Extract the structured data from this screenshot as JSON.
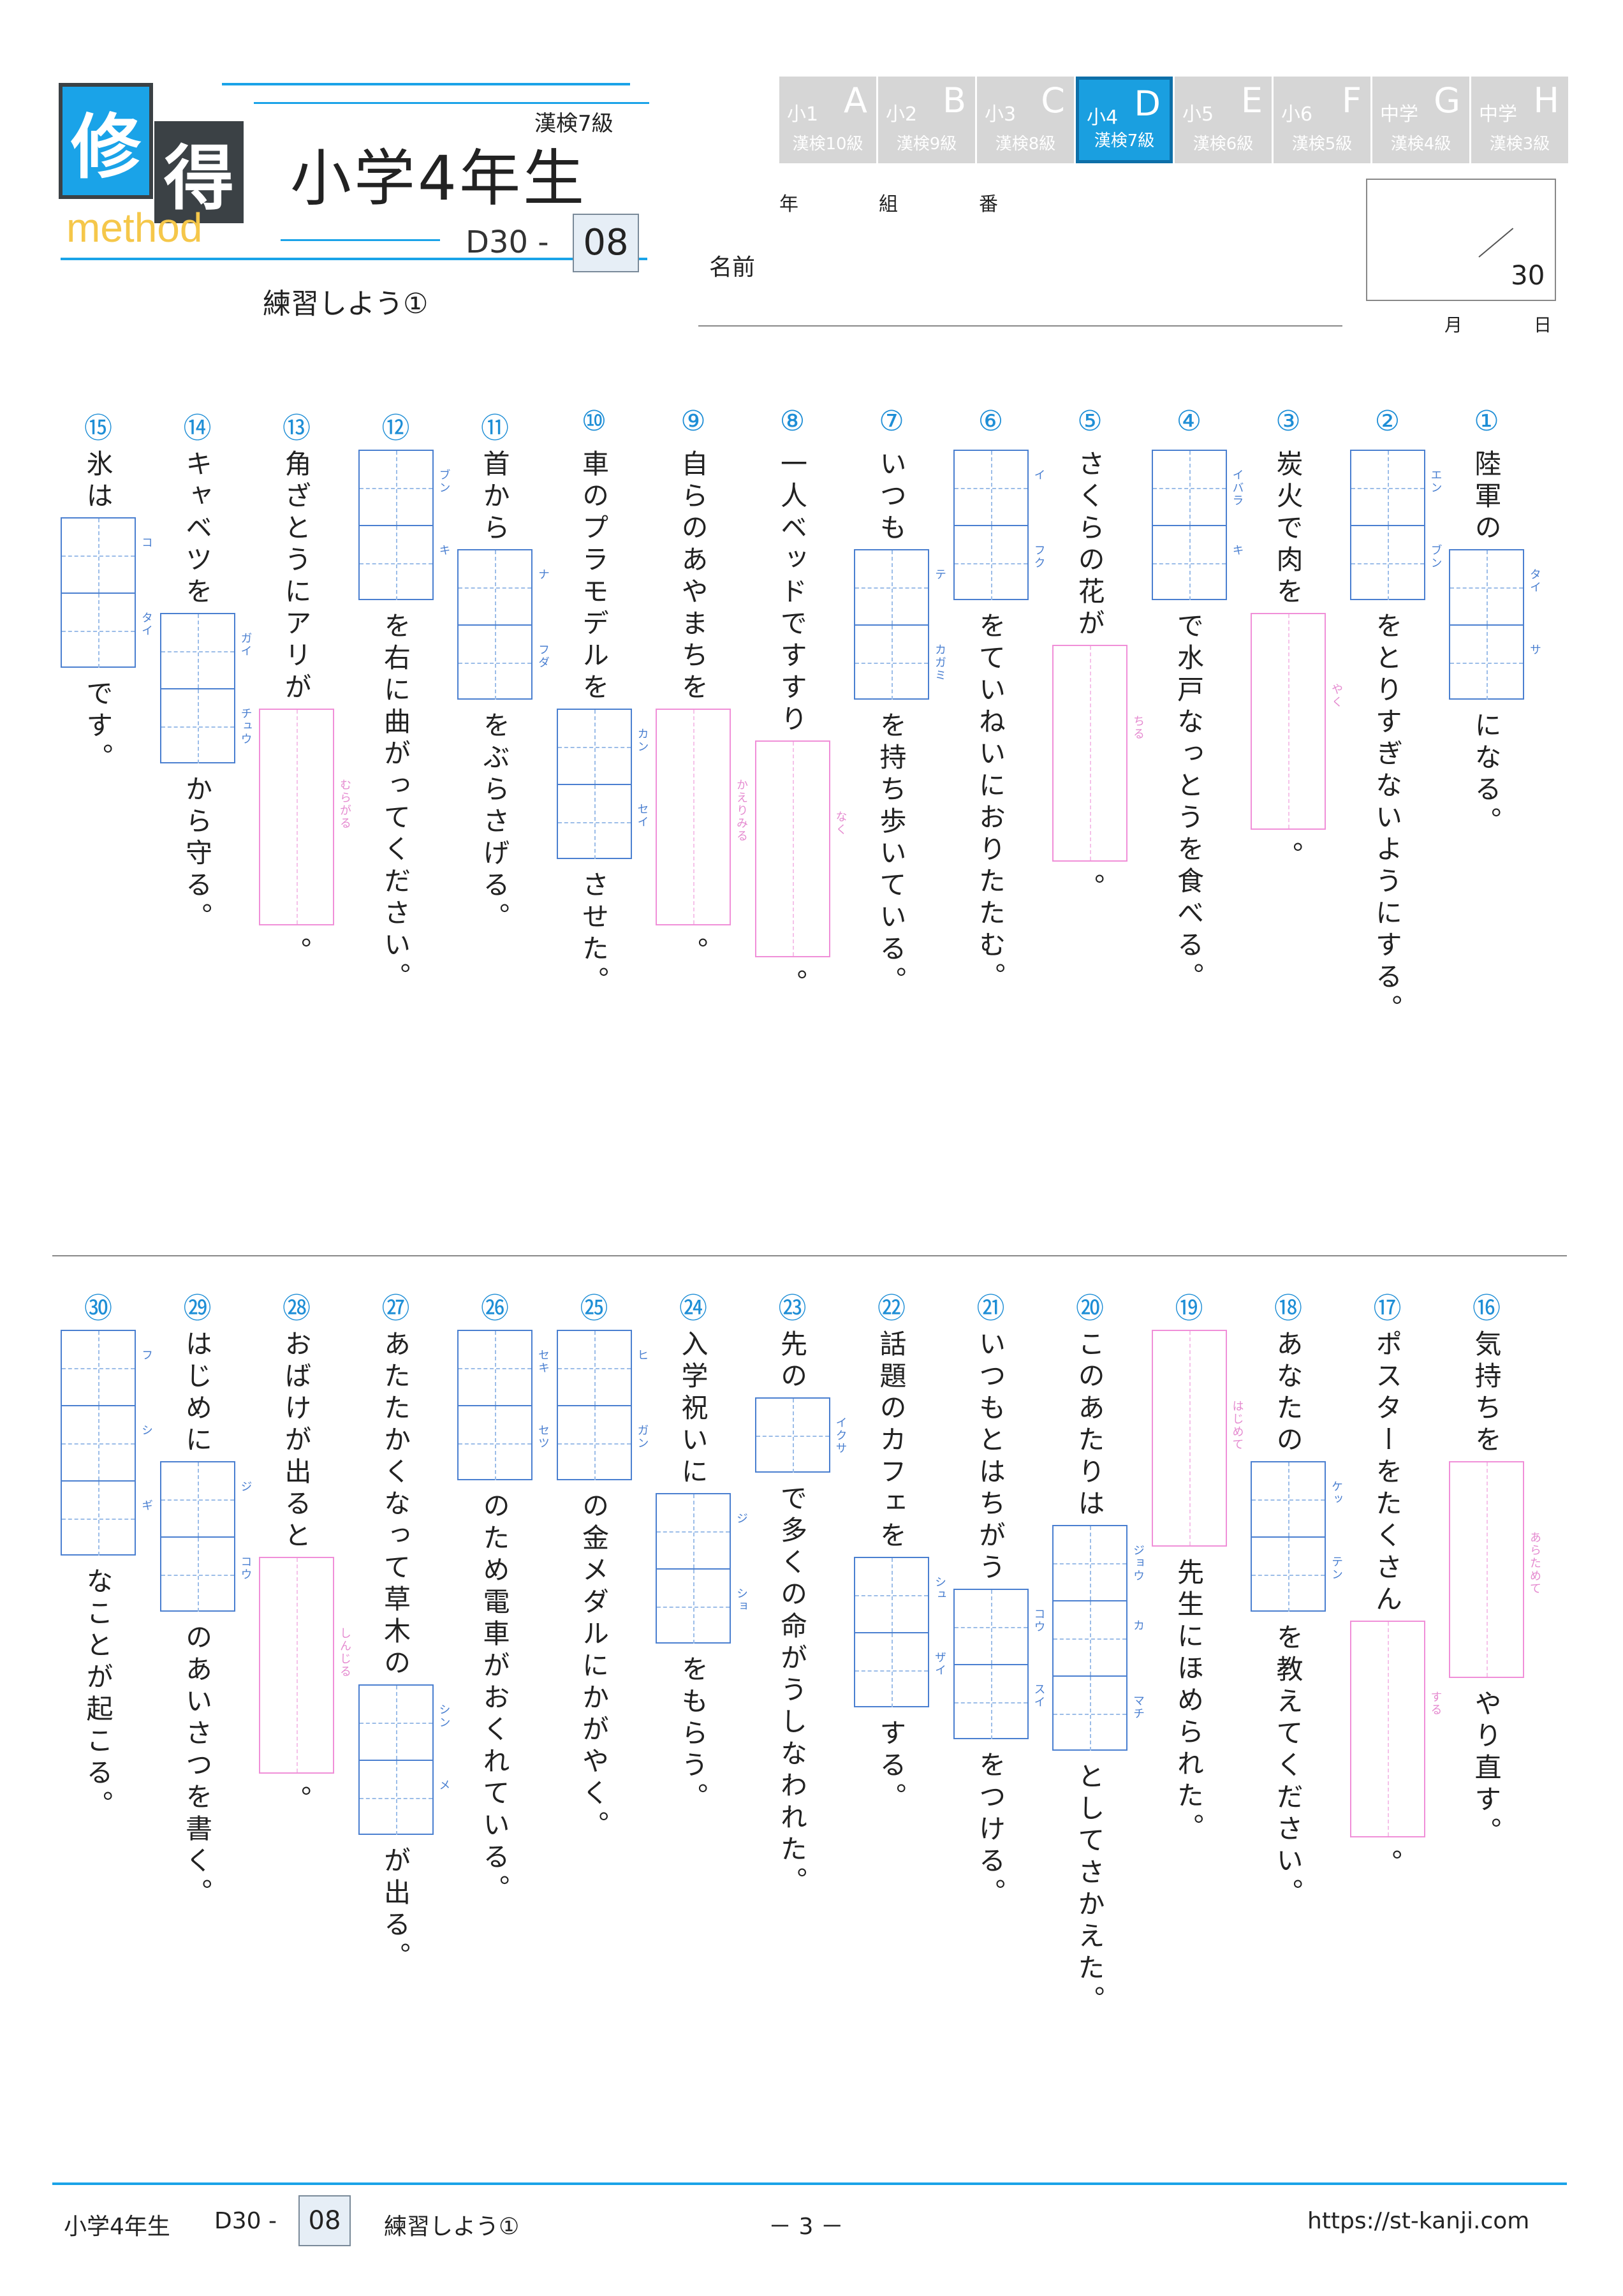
{
  "header": {
    "logo_char1": "修",
    "logo_char2": "得",
    "logo_method": "method",
    "kanken": "漢検7級",
    "title": "小学4年生",
    "code_prefix": "D30 -",
    "code_num": "08",
    "subtitle": "練習しよう①",
    "nen": "年",
    "kumi": "組",
    "ban": "番",
    "name_label": "名前",
    "score": "30",
    "month": "月",
    "day": "日"
  },
  "grades": [
    {
      "grade": "小1",
      "letter": "A",
      "kanken": "漢検10級",
      "active": false
    },
    {
      "grade": "小2",
      "letter": "B",
      "kanken": "漢検9級",
      "active": false
    },
    {
      "grade": "小3",
      "letter": "C",
      "kanken": "漢検8級",
      "active": false
    },
    {
      "grade": "小4",
      "letter": "D",
      "kanken": "漢検7級",
      "active": true
    },
    {
      "grade": "小5",
      "letter": "E",
      "kanken": "漢検6級",
      "active": false
    },
    {
      "grade": "小6",
      "letter": "F",
      "kanken": "漢検5級",
      "active": false
    },
    {
      "grade": "中学",
      "letter": "G",
      "kanken": "漢検4級",
      "active": false
    },
    {
      "grade": "中学",
      "letter": "H",
      "kanken": "漢検3級",
      "active": false
    }
  ],
  "questions": [
    {
      "num": "①",
      "parts": [
        {
          "t": "text",
          "v": "陸軍の"
        },
        {
          "t": "box",
          "r": [
            "タイ",
            "サ"
          ],
          "c": "blue"
        },
        {
          "t": "text",
          "v": "になる。"
        }
      ]
    },
    {
      "num": "②",
      "parts": [
        {
          "t": "box",
          "r": [
            "エン",
            "ブン"
          ],
          "c": "blue"
        },
        {
          "t": "text",
          "v": "をとりすぎないようにする。"
        }
      ]
    },
    {
      "num": "③",
      "parts": [
        {
          "t": "text",
          "v": "炭火で肉を"
        },
        {
          "t": "box",
          "r": [
            "やく"
          ],
          "c": "pink"
        },
        {
          "t": "text",
          "v": "。"
        }
      ]
    },
    {
      "num": "④",
      "parts": [
        {
          "t": "box",
          "r": [
            "イバラ",
            "キ"
          ],
          "c": "blue"
        },
        {
          "t": "text",
          "v": "で水戸なっとうを食べる。"
        }
      ]
    },
    {
      "num": "⑤",
      "parts": [
        {
          "t": "text",
          "v": "さくらの花が"
        },
        {
          "t": "box",
          "r": [
            "ちる"
          ],
          "c": "pink"
        },
        {
          "t": "text",
          "v": "。"
        }
      ]
    },
    {
      "num": "⑥",
      "parts": [
        {
          "t": "box",
          "r": [
            "イ",
            "フク"
          ],
          "c": "blue"
        },
        {
          "t": "text",
          "v": "をていねいにおりたたむ。"
        }
      ]
    },
    {
      "num": "⑦",
      "parts": [
        {
          "t": "text",
          "v": "いつも"
        },
        {
          "t": "box",
          "r": [
            "テ",
            "カガミ"
          ],
          "c": "blue"
        },
        {
          "t": "text",
          "v": "を持ち歩いている。"
        }
      ]
    },
    {
      "num": "⑧",
      "parts": [
        {
          "t": "text",
          "v": "一人ベッドですすり"
        },
        {
          "t": "box",
          "r": [
            "なく"
          ],
          "c": "pink"
        },
        {
          "t": "text",
          "v": "。"
        }
      ]
    },
    {
      "num": "⑨",
      "parts": [
        {
          "t": "text",
          "v": "自らのあやまちを"
        },
        {
          "t": "box",
          "r": [
            "かえりみる"
          ],
          "c": "pink"
        },
        {
          "t": "text",
          "v": "。"
        }
      ]
    },
    {
      "num": "⑩",
      "parts": [
        {
          "t": "text",
          "v": "車のプラモデルを"
        },
        {
          "t": "box",
          "r": [
            "カン",
            "セイ"
          ],
          "c": "blue"
        },
        {
          "t": "text",
          "v": "させた。"
        }
      ]
    },
    {
      "num": "⑪",
      "parts": [
        {
          "t": "text",
          "v": "首から"
        },
        {
          "t": "box",
          "r": [
            "ナ",
            "フダ"
          ],
          "c": "blue"
        },
        {
          "t": "text",
          "v": "をぶらさげる。"
        }
      ]
    },
    {
      "num": "⑫",
      "parts": [
        {
          "t": "box",
          "r": [
            "ブン",
            "キ"
          ],
          "c": "blue"
        },
        {
          "t": "text",
          "v": "を右に曲がってください。"
        }
      ]
    },
    {
      "num": "⑬",
      "parts": [
        {
          "t": "text",
          "v": "角ざとうにアリが"
        },
        {
          "t": "box",
          "r": [
            "むらがる"
          ],
          "c": "pink"
        },
        {
          "t": "text",
          "v": "。"
        }
      ]
    },
    {
      "num": "⑭",
      "parts": [
        {
          "t": "text",
          "v": "キャベツを"
        },
        {
          "t": "box",
          "r": [
            "ガイ",
            "チュウ"
          ],
          "c": "blue"
        },
        {
          "t": "text",
          "v": "から守る。"
        }
      ]
    },
    {
      "num": "⑮",
      "parts": [
        {
          "t": "text",
          "v": "氷は"
        },
        {
          "t": "box",
          "r": [
            "コ",
            "タイ"
          ],
          "c": "blue"
        },
        {
          "t": "text",
          "v": "です。"
        }
      ]
    },
    {
      "num": "⑯",
      "parts": [
        {
          "t": "text",
          "v": "気持ちを"
        },
        {
          "t": "box",
          "r": [
            "あらためて"
          ],
          "c": "pink"
        },
        {
          "t": "text",
          "v": "やり直す。"
        }
      ]
    },
    {
      "num": "⑰",
      "parts": [
        {
          "t": "text",
          "v": "ポスターをたくさん"
        },
        {
          "t": "box",
          "r": [
            "する"
          ],
          "c": "pink"
        },
        {
          "t": "text",
          "v": "。"
        }
      ]
    },
    {
      "num": "⑱",
      "parts": [
        {
          "t": "text",
          "v": "あなたの"
        },
        {
          "t": "box",
          "r": [
            "ケッ",
            "テン"
          ],
          "c": "blue"
        },
        {
          "t": "text",
          "v": "を教えてください。"
        }
      ]
    },
    {
      "num": "⑲",
      "parts": [
        {
          "t": "box",
          "r": [
            "はじめて"
          ],
          "c": "pink"
        },
        {
          "t": "text",
          "v": "先生にほめられた。"
        }
      ]
    },
    {
      "num": "⑳",
      "parts": [
        {
          "t": "text",
          "v": "このあたりは"
        },
        {
          "t": "box",
          "r": [
            "ジョウ",
            "カ",
            "マチ"
          ],
          "c": "blue"
        },
        {
          "t": "text",
          "v": "としてさかえた。"
        }
      ]
    },
    {
      "num": "㉑",
      "parts": [
        {
          "t": "text",
          "v": "いつもとはちがう"
        },
        {
          "t": "box",
          "r": [
            "コウ",
            "スイ"
          ],
          "c": "blue"
        },
        {
          "t": "text",
          "v": "をつける。"
        }
      ]
    },
    {
      "num": "㉒",
      "parts": [
        {
          "t": "text",
          "v": "話題のカフェを"
        },
        {
          "t": "box",
          "r": [
            "シュ",
            "ザイ"
          ],
          "c": "blue"
        },
        {
          "t": "text",
          "v": "する。"
        }
      ]
    },
    {
      "num": "㉓",
      "parts": [
        {
          "t": "text",
          "v": "先の"
        },
        {
          "t": "box",
          "r": [
            "イクサ"
          ],
          "c": "blue"
        },
        {
          "t": "text",
          "v": "で多くの命がうしなわれた。"
        }
      ]
    },
    {
      "num": "㉔",
      "parts": [
        {
          "t": "text",
          "v": "入学祝いに"
        },
        {
          "t": "box",
          "r": [
            "ジ",
            "ショ"
          ],
          "c": "blue"
        },
        {
          "t": "text",
          "v": "をもらう。"
        }
      ]
    },
    {
      "num": "㉕",
      "parts": [
        {
          "t": "box",
          "r": [
            "ヒ",
            "ガン"
          ],
          "c": "blue"
        },
        {
          "t": "text",
          "v": "の金メダルにかがやく。"
        }
      ]
    },
    {
      "num": "㉖",
      "parts": [
        {
          "t": "box",
          "r": [
            "セキ",
            "セツ"
          ],
          "c": "blue"
        },
        {
          "t": "text",
          "v": "のため電車がおくれている。"
        }
      ]
    },
    {
      "num": "㉗",
      "parts": [
        {
          "t": "text",
          "v": "あたたかくなって草木の"
        },
        {
          "t": "box",
          "r": [
            "シン",
            "メ"
          ],
          "c": "blue"
        },
        {
          "t": "text",
          "v": "が出る。"
        }
      ]
    },
    {
      "num": "㉘",
      "parts": [
        {
          "t": "text",
          "v": "おばけが出ると"
        },
        {
          "t": "box",
          "r": [
            "しんじる"
          ],
          "c": "pink"
        },
        {
          "t": "text",
          "v": "。"
        }
      ]
    },
    {
      "num": "㉙",
      "parts": [
        {
          "t": "text",
          "v": "はじめに"
        },
        {
          "t": "box",
          "r": [
            "ジ",
            "コウ"
          ],
          "c": "blue"
        },
        {
          "t": "text",
          "v": "のあいさつを書く。"
        }
      ]
    },
    {
      "num": "㉚",
      "parts": [
        {
          "t": "box",
          "r": [
            "フ",
            "シ",
            "ギ"
          ],
          "c": "blue"
        },
        {
          "t": "text",
          "v": "なことが起こる。"
        }
      ]
    }
  ],
  "footer": {
    "title": "小学4年生",
    "code_prefix": "D30 -",
    "code_num": "08",
    "subtitle": "練習しよう①",
    "page": "－ 3 －",
    "url": "https://st-kanji.com"
  },
  "colors": {
    "accent_blue": "#1aa3e8",
    "answer_box_blue": "#4a7fd0",
    "answer_box_pink": "#f08fd8",
    "tab_gray": "#d6d6d6"
  }
}
